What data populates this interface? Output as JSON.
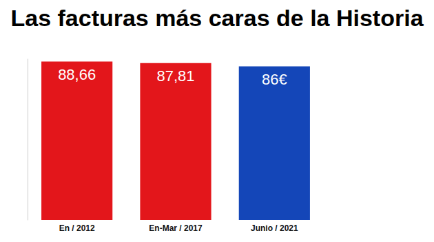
{
  "chart_data": {
    "type": "bar",
    "title": "Las facturas más caras de la Historia",
    "categories": [
      "En / 2012",
      "En-Mar / 2017",
      "Junio / 2021"
    ],
    "values": [
      88.66,
      87.81,
      86
    ],
    "value_labels": [
      "88,66",
      "87,81",
      "86€"
    ],
    "colors": [
      "#e3161b",
      "#e3161b",
      "#1446b8"
    ],
    "ylim": [
      0,
      90
    ],
    "grid": false,
    "data_labels": true,
    "tick_labels": "x"
  }
}
